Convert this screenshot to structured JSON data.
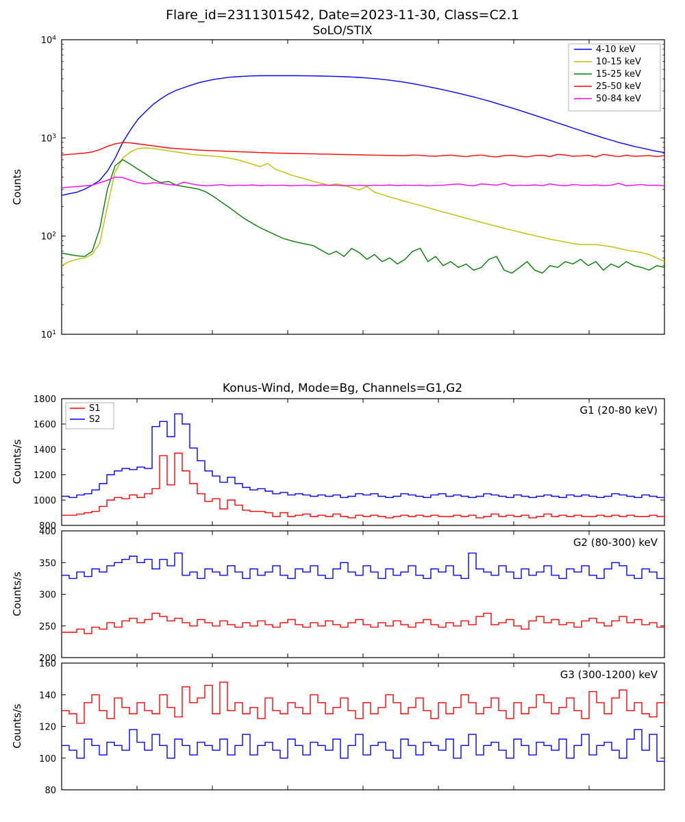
{
  "main_title": "Flare_id=2311301542, Date=2023-11-30, Class=C2.1",
  "panel1": {
    "type": "line",
    "title": "SoLO/STIX",
    "ylabel": "Counts",
    "yscale": "log",
    "ylim": [
      10,
      10000
    ],
    "yticks": [
      10,
      100,
      1000,
      10000
    ],
    "ytick_labels": [
      "10¹",
      "10²",
      "10³",
      "10⁴"
    ],
    "xlim": [
      0,
      80
    ],
    "xticks_minor": [
      10,
      20,
      30,
      40,
      50,
      60,
      70
    ],
    "line_width": 1.4,
    "background_color": "#ffffff",
    "series": [
      {
        "label": "4-10 keV",
        "color": "#0000ff",
        "y": [
          260,
          270,
          280,
          300,
          330,
          370,
          460,
          620,
          900,
          1200,
          1550,
          1850,
          2200,
          2500,
          2800,
          3050,
          3250,
          3450,
          3650,
          3800,
          3950,
          4050,
          4150,
          4200,
          4250,
          4280,
          4300,
          4300,
          4300,
          4300,
          4300,
          4300,
          4290,
          4280,
          4270,
          4250,
          4230,
          4200,
          4170,
          4130,
          4080,
          4020,
          3950,
          3870,
          3780,
          3680,
          3570,
          3450,
          3330,
          3210,
          3090,
          2970,
          2850,
          2730,
          2610,
          2490,
          2370,
          2250,
          2130,
          2020,
          1910,
          1800,
          1700,
          1600,
          1510,
          1420,
          1340,
          1260,
          1190,
          1120,
          1060,
          1000,
          950,
          900,
          860,
          820,
          790,
          760,
          730,
          710
        ]
      },
      {
        "label": "10-15 keV",
        "color": "#bfbf00",
        "y": [
          50,
          55,
          58,
          60,
          65,
          85,
          200,
          450,
          620,
          720,
          780,
          790,
          780,
          760,
          740,
          720,
          700,
          680,
          670,
          660,
          650,
          640,
          620,
          600,
          570,
          540,
          510,
          550,
          480,
          450,
          420,
          400,
          380,
          360,
          345,
          330,
          340,
          330,
          310,
          295,
          320,
          280,
          265,
          250,
          238,
          226,
          215,
          205,
          195,
          185,
          176,
          168,
          160,
          152,
          145,
          138,
          132,
          126,
          120,
          115,
          110,
          105,
          101,
          97,
          93,
          90,
          87,
          84,
          82,
          82,
          82,
          80,
          78,
          75,
          72,
          70,
          68,
          65,
          60,
          55
        ]
      },
      {
        "label": "15-25 keV",
        "color": "#008000",
        "y": [
          67,
          65,
          63,
          62,
          70,
          120,
          300,
          520,
          600,
          540,
          480,
          430,
          380,
          350,
          360,
          330,
          320,
          310,
          300,
          280,
          250,
          220,
          195,
          170,
          150,
          135,
          122,
          112,
          103,
          95,
          90,
          86,
          83,
          80,
          72,
          65,
          70,
          62,
          75,
          68,
          58,
          65,
          55,
          60,
          52,
          58,
          70,
          75,
          55,
          62,
          50,
          55,
          48,
          52,
          45,
          48,
          58,
          62,
          45,
          42,
          48,
          55,
          45,
          42,
          50,
          48,
          55,
          52,
          58,
          50,
          55,
          45,
          52,
          48,
          55,
          50,
          48,
          45,
          50,
          48
        ]
      },
      {
        "label": "25-50 keV",
        "color": "#ff0000",
        "y": [
          670,
          680,
          690,
          700,
          720,
          760,
          820,
          870,
          900,
          890,
          870,
          850,
          830,
          810,
          790,
          780,
          770,
          760,
          750,
          745,
          740,
          735,
          730,
          725,
          720,
          715,
          710,
          705,
          700,
          698,
          695,
          693,
          690,
          688,
          685,
          683,
          680,
          678,
          675,
          673,
          670,
          668,
          665,
          663,
          660,
          658,
          670,
          665,
          655,
          650,
          660,
          668,
          655,
          645,
          660,
          670,
          650,
          640,
          660,
          665,
          650,
          640,
          660,
          665,
          645,
          680,
          670,
          650,
          655,
          665,
          640,
          680,
          660,
          645,
          665,
          650,
          655,
          660,
          645,
          660
        ]
      },
      {
        "label": "50-84 keV",
        "color": "#ff00ff",
        "y": [
          310,
          315,
          320,
          325,
          330,
          350,
          370,
          400,
          395,
          370,
          350,
          340,
          350,
          345,
          335,
          330,
          355,
          340,
          330,
          325,
          330,
          335,
          325,
          330,
          328,
          332,
          326,
          330,
          328,
          330,
          325,
          328,
          330,
          326,
          332,
          328,
          330,
          325,
          328,
          330,
          326,
          330,
          328,
          332,
          326,
          330,
          328,
          330,
          325,
          328,
          330,
          335,
          340,
          330,
          325,
          340,
          335,
          330,
          345,
          325,
          330,
          328,
          332,
          326,
          340,
          330,
          325,
          335,
          330,
          328,
          332,
          326,
          330,
          345,
          325,
          330,
          335,
          328,
          330,
          325
        ]
      }
    ],
    "legend": {
      "position": "upper right",
      "fontsize": 12
    }
  },
  "panel2_title": "Konus-Wind, Mode=Bg, Channels=G1,G2",
  "panel2": {
    "type": "step",
    "annot": "G1 (20-80 keV)",
    "ylabel": "Counts/s",
    "ylim": [
      800,
      1800
    ],
    "yticks": [
      800,
      1000,
      1200,
      1400,
      1600,
      1800
    ],
    "xlim": [
      0,
      80
    ],
    "line_width": 1.4,
    "series": [
      {
        "label": "S1",
        "color": "#ff0000",
        "y": [
          880,
          880,
          890,
          900,
          910,
          950,
          1000,
          1020,
          1010,
          1040,
          1020,
          1050,
          1090,
          1350,
          1120,
          1370,
          1230,
          1130,
          1050,
          990,
          1010,
          930,
          1000,
          960,
          920,
          910,
          910,
          900,
          870,
          900,
          870,
          880,
          890,
          870,
          880,
          870,
          890,
          870,
          860,
          880,
          870,
          880,
          870,
          860,
          870,
          880,
          870,
          880,
          870,
          880,
          870,
          870,
          880,
          870,
          880,
          860,
          870,
          890,
          870,
          880,
          870,
          880,
          860,
          870,
          890,
          870,
          880,
          870,
          880,
          870,
          870,
          880,
          870,
          880,
          870,
          880,
          870,
          870,
          880,
          870
        ]
      },
      {
        "label": "S2",
        "color": "#0000ff",
        "y": [
          1030,
          1020,
          1040,
          1050,
          1080,
          1130,
          1200,
          1230,
          1250,
          1240,
          1260,
          1250,
          1580,
          1620,
          1500,
          1680,
          1600,
          1410,
          1310,
          1230,
          1190,
          1140,
          1180,
          1130,
          1100,
          1080,
          1090,
          1070,
          1050,
          1060,
          1040,
          1050,
          1040,
          1030,
          1040,
          1030,
          1040,
          1020,
          1030,
          1050,
          1040,
          1050,
          1030,
          1020,
          1030,
          1050,
          1040,
          1030,
          1020,
          1040,
          1050,
          1030,
          1040,
          1030,
          1020,
          1030,
          1050,
          1040,
          1030,
          1020,
          1040,
          1030,
          1020,
          1030,
          1040,
          1030,
          1020,
          1040,
          1030,
          1040,
          1030,
          1020,
          1030,
          1050,
          1040,
          1030,
          1020,
          1040,
          1030,
          1020
        ]
      }
    ],
    "legend": {
      "position": "upper left",
      "fontsize": 11,
      "labels": [
        "S1",
        "S2"
      ]
    }
  },
  "panel3": {
    "type": "step",
    "annot": "G2 (80-300) keV",
    "ylabel": "Counts/s",
    "ylim": [
      200,
      400
    ],
    "yticks": [
      200,
      250,
      300,
      350,
      400
    ],
    "xlim": [
      0,
      80
    ],
    "line_width": 1.4,
    "series": [
      {
        "color": "#ff0000",
        "y": [
          240,
          240,
          245,
          238,
          248,
          245,
          255,
          248,
          258,
          262,
          255,
          260,
          270,
          265,
          258,
          262,
          255,
          250,
          260,
          255,
          250,
          258,
          252,
          248,
          255,
          250,
          258,
          252,
          248,
          255,
          260,
          252,
          248,
          255,
          250,
          258,
          252,
          248,
          255,
          260,
          252,
          248,
          255,
          250,
          258,
          252,
          248,
          255,
          260,
          252,
          248,
          255,
          250,
          258,
          252,
          265,
          270,
          252,
          255,
          260,
          250,
          245,
          258,
          265,
          255,
          260,
          252,
          255,
          248,
          258,
          262,
          255,
          250,
          258,
          265,
          255,
          260,
          252,
          255,
          248
        ]
      },
      {
        "color": "#0000ff",
        "y": [
          330,
          325,
          335,
          328,
          340,
          335,
          345,
          350,
          355,
          360,
          350,
          355,
          340,
          355,
          345,
          365,
          330,
          335,
          325,
          340,
          335,
          330,
          345,
          335,
          325,
          340,
          330,
          335,
          345,
          330,
          325,
          340,
          335,
          345,
          330,
          325,
          340,
          350,
          335,
          330,
          345,
          335,
          325,
          340,
          330,
          335,
          345,
          330,
          325,
          340,
          335,
          345,
          330,
          325,
          365,
          340,
          335,
          330,
          345,
          335,
          325,
          340,
          330,
          335,
          345,
          330,
          325,
          340,
          335,
          345,
          330,
          325,
          340,
          350,
          345,
          330,
          325,
          340,
          335,
          325
        ]
      }
    ]
  },
  "panel4": {
    "type": "step",
    "annot": "G3 (300-1200) keV",
    "ylabel": "Counts/s",
    "ylim": [
      80,
      160
    ],
    "yticks": [
      80,
      100,
      120,
      140,
      160
    ],
    "xlim": [
      0,
      80
    ],
    "line_width": 1.4,
    "series": [
      {
        "color": "#ff0000",
        "y": [
          130,
          128,
          122,
          135,
          140,
          130,
          125,
          138,
          132,
          128,
          135,
          130,
          128,
          140,
          132,
          126,
          145,
          135,
          138,
          146,
          128,
          148,
          130,
          135,
          128,
          132,
          125,
          138,
          130,
          128,
          135,
          132,
          128,
          140,
          135,
          128,
          132,
          138,
          130,
          125,
          135,
          128,
          132,
          140,
          135,
          128,
          132,
          138,
          130,
          125,
          135,
          128,
          132,
          140,
          135,
          128,
          132,
          138,
          130,
          125,
          135,
          128,
          132,
          140,
          135,
          128,
          132,
          138,
          130,
          125,
          142,
          135,
          128,
          138,
          143,
          130,
          135,
          128,
          126,
          135
        ]
      },
      {
        "color": "#0000ff",
        "y": [
          108,
          105,
          100,
          112,
          108,
          102,
          110,
          108,
          105,
          118,
          110,
          105,
          115,
          108,
          100,
          112,
          108,
          102,
          110,
          108,
          105,
          112,
          102,
          108,
          115,
          102,
          108,
          110,
          105,
          100,
          112,
          108,
          102,
          110,
          108,
          105,
          112,
          100,
          108,
          115,
          102,
          108,
          110,
          105,
          100,
          112,
          108,
          102,
          110,
          108,
          105,
          112,
          100,
          108,
          115,
          102,
          108,
          110,
          105,
          100,
          112,
          108,
          102,
          110,
          108,
          105,
          112,
          100,
          108,
          115,
          102,
          108,
          110,
          105,
          100,
          112,
          118,
          105,
          115,
          98
        ]
      }
    ]
  },
  "colors": {
    "axis": "#000000",
    "background": "#ffffff"
  },
  "font": {
    "family": "DejaVu Sans",
    "title_size": 19,
    "label_size": 15,
    "tick_size": 13
  }
}
